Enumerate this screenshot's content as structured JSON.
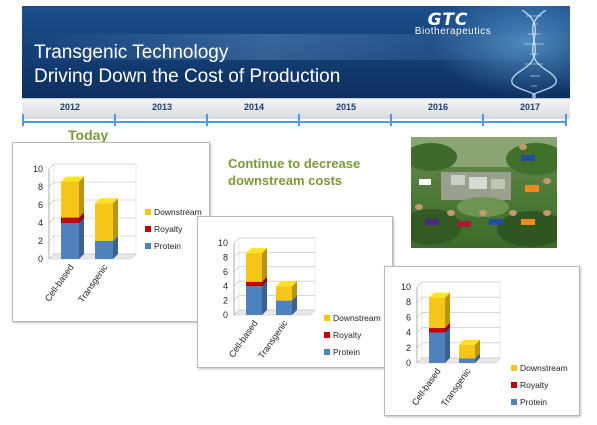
{
  "header": {
    "title_line1": "Transgenic Technology",
    "title_line2": "Driving Down the Cost of Production",
    "logo_text": "GTC",
    "logo_sub": "Biotherapeutics"
  },
  "timeline": {
    "years": [
      "2012",
      "2013",
      "2014",
      "2015",
      "2016",
      "2017"
    ]
  },
  "today_label": "Today",
  "message": {
    "line1": "Continue to decrease",
    "line2": "downstream costs"
  },
  "colors": {
    "protein": "#4f81bd",
    "royalty": "#c0000d",
    "downstream": "#f5c518"
  },
  "chart_data": [
    {
      "type": "bar",
      "stacked": true,
      "categories": [
        "Cell-based",
        "Transgenic"
      ],
      "ylim": [
        0,
        10
      ],
      "yticks": [
        0,
        2,
        4,
        6,
        8,
        10
      ],
      "series": [
        {
          "name": "Protein",
          "values": [
            4.0,
            2.0
          ]
        },
        {
          "name": "Royalty",
          "values": [
            0.6,
            0.0
          ]
        },
        {
          "name": "Downstream",
          "values": [
            4.0,
            4.2
          ]
        }
      ],
      "legend_placement": "right"
    },
    {
      "type": "bar",
      "stacked": true,
      "categories": [
        "Cell-based",
        "Transgenic"
      ],
      "ylim": [
        0,
        10
      ],
      "yticks": [
        0,
        2,
        4,
        6,
        8,
        10
      ],
      "series": [
        {
          "name": "Protein",
          "values": [
            4.0,
            2.0
          ]
        },
        {
          "name": "Royalty",
          "values": [
            0.6,
            0.0
          ]
        },
        {
          "name": "Downstream",
          "values": [
            4.0,
            2.0
          ]
        }
      ],
      "legend_placement": "bottom-right"
    },
    {
      "type": "bar",
      "stacked": true,
      "categories": [
        "Cell-based",
        "Transgenic"
      ],
      "ylim": [
        0,
        10
      ],
      "yticks": [
        0,
        2,
        4,
        6,
        8,
        10
      ],
      "series": [
        {
          "name": "Protein",
          "values": [
            4.0,
            0.6
          ]
        },
        {
          "name": "Royalty",
          "values": [
            0.6,
            0.0
          ]
        },
        {
          "name": "Downstream",
          "values": [
            4.0,
            1.8
          ]
        }
      ],
      "legend_placement": "bottom-right"
    }
  ]
}
